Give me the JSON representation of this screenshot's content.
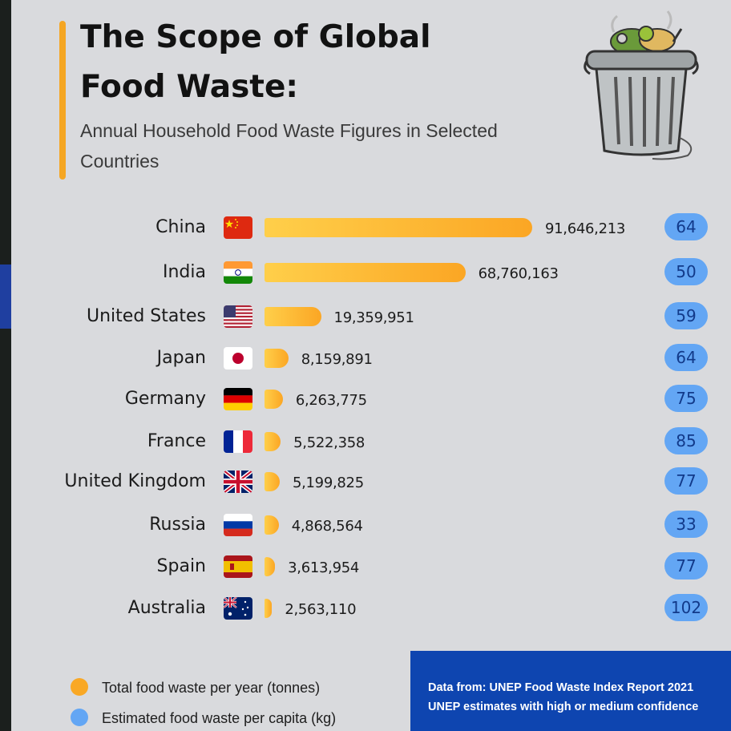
{
  "title": "The Scope of Global Food Waste:",
  "subtitle": "Annual Household Food Waste Figures in Selected Countries",
  "colors": {
    "bar": "#f9a825",
    "pill": "#63a6f4",
    "source_bg": "#0e45b0",
    "accent": "#f5a623"
  },
  "chart_data": {
    "type": "bar",
    "orientation": "horizontal",
    "categories": [
      "China",
      "India",
      "United States",
      "Japan",
      "Germany",
      "France",
      "United Kingdom",
      "Russia",
      "Spain",
      "Australia"
    ],
    "series": [
      {
        "name": "Total food waste per year (tonnes)",
        "values": [
          91646213,
          68760163,
          19359951,
          8159891,
          6263775,
          5522358,
          5199825,
          4868564,
          3613954,
          2563110
        ]
      },
      {
        "name": "Estimated food waste per capita (kg)",
        "values": [
          64,
          50,
          59,
          64,
          75,
          85,
          77,
          33,
          77,
          102
        ]
      }
    ],
    "value_labels": [
      "91,646,213",
      "68,760,163",
      "19,359,951",
      "8,159,891",
      "6,263,775",
      "5,522,358",
      "5,199,825",
      "4,868,564",
      "3,613,954",
      "2,563,110"
    ],
    "flags": [
      "china",
      "india",
      "united-states",
      "japan",
      "germany",
      "france",
      "united-kingdom",
      "russia",
      "spain",
      "australia"
    ],
    "legend": [
      {
        "label": "Total food waste per year (tonnes)",
        "color": "#f9a825"
      },
      {
        "label": "Estimated food waste per capita (kg)",
        "color": "#63a6f4"
      }
    ]
  },
  "source": {
    "line1": "Data from: UNEP Food Waste Index Report 2021",
    "line2": "UNEP estimates with high or medium confidence"
  },
  "illustration": "trash-can-icon"
}
